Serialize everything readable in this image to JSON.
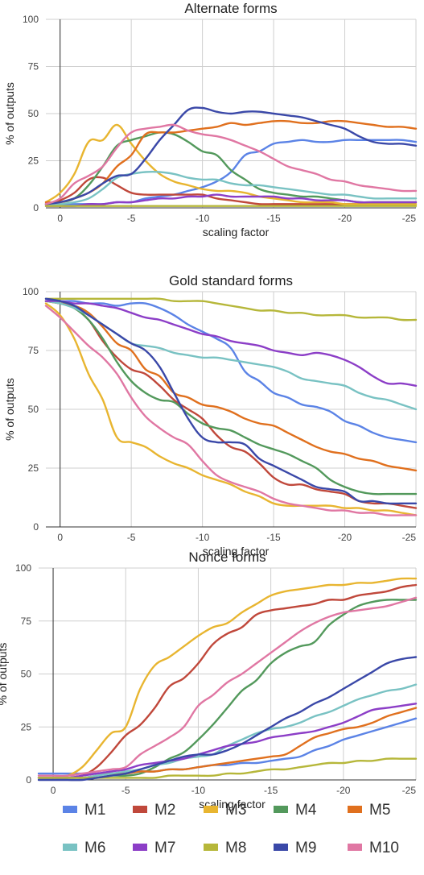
{
  "series_meta": [
    {
      "name": "M1",
      "color": "#5b83e6"
    },
    {
      "name": "M2",
      "color": "#c0483b"
    },
    {
      "name": "M3",
      "color": "#e8b530"
    },
    {
      "name": "M4",
      "color": "#53995c"
    },
    {
      "name": "M5",
      "color": "#e0701e"
    },
    {
      "name": "M6",
      "color": "#79c2c3"
    },
    {
      "name": "M7",
      "color": "#8c3ec7"
    },
    {
      "name": "M8",
      "color": "#b6b73a"
    },
    {
      "name": "M9",
      "color": "#3a48a8"
    },
    {
      "name": "M10",
      "color": "#e077a3"
    }
  ],
  "chart_data": [
    {
      "type": "line",
      "title": "Alternate forms",
      "xlabel": "scaling factor",
      "ylabel": "% of outputs",
      "xlim": [
        1,
        -25
      ],
      "ylim": [
        0,
        100
      ],
      "xticks": [
        0,
        -5,
        -10,
        -15,
        -20,
        -25
      ],
      "yticks": [
        0,
        25,
        50,
        75,
        100
      ],
      "x": [
        1,
        0,
        -1,
        -2,
        -3,
        -4,
        -5,
        -6,
        -7,
        -8,
        -9,
        -10,
        -11,
        -12,
        -13,
        -14,
        -15,
        -16,
        -17,
        -18,
        -19,
        -20,
        -21,
        -22,
        -23,
        -24,
        -25
      ],
      "series": [
        {
          "name": "M1",
          "values": [
            2,
            2,
            2,
            2,
            2,
            3,
            3,
            5,
            6,
            7,
            9,
            11,
            14,
            19,
            28,
            30,
            34,
            35,
            36,
            35,
            35,
            36,
            36,
            36,
            36,
            36,
            35
          ]
        },
        {
          "name": "M2",
          "values": [
            2,
            4,
            8,
            15,
            16,
            12,
            8,
            7,
            7,
            7,
            7,
            7,
            5,
            4,
            3,
            2,
            2,
            2,
            2,
            2,
            2,
            2,
            2,
            2,
            2,
            2,
            2
          ]
        },
        {
          "name": "M3",
          "values": [
            3,
            8,
            18,
            35,
            36,
            44,
            34,
            25,
            18,
            14,
            12,
            10,
            9,
            9,
            8,
            6,
            5,
            4,
            3,
            3,
            3,
            2,
            2,
            2,
            2,
            2,
            2
          ]
        },
        {
          "name": "M4",
          "values": [
            2,
            3,
            5,
            12,
            22,
            33,
            36,
            38,
            40,
            39,
            35,
            30,
            28,
            20,
            15,
            10,
            8,
            7,
            6,
            6,
            5,
            4,
            3,
            3,
            3,
            3,
            3
          ]
        },
        {
          "name": "M5",
          "values": [
            3,
            3,
            5,
            8,
            13,
            22,
            28,
            39,
            40,
            40,
            41,
            42,
            43,
            45,
            44,
            45,
            46,
            46,
            45,
            45,
            46,
            46,
            45,
            44,
            43,
            43,
            42
          ]
        },
        {
          "name": "M6",
          "values": [
            1,
            2,
            3,
            5,
            10,
            16,
            18,
            19,
            19,
            18,
            16,
            15,
            15,
            13,
            12,
            12,
            11,
            10,
            9,
            8,
            7,
            7,
            6,
            5,
            5,
            5,
            5
          ]
        },
        {
          "name": "M7",
          "values": [
            1,
            1,
            1,
            2,
            2,
            3,
            3,
            4,
            5,
            5,
            6,
            6,
            7,
            6,
            6,
            6,
            6,
            5,
            5,
            4,
            4,
            4,
            3,
            3,
            3,
            3,
            3
          ]
        },
        {
          "name": "M8",
          "values": [
            1,
            1,
            1,
            1,
            1,
            1,
            1,
            1,
            1,
            1,
            1,
            1,
            1,
            1,
            1,
            1,
            1,
            1,
            1,
            1,
            1,
            1,
            1,
            1,
            1,
            1,
            1
          ]
        },
        {
          "name": "M9",
          "values": [
            2,
            3,
            5,
            8,
            13,
            17,
            18,
            26,
            36,
            44,
            52,
            53,
            51,
            50,
            51,
            51,
            50,
            49,
            48,
            46,
            44,
            42,
            38,
            35,
            34,
            34,
            33
          ]
        },
        {
          "name": "M10",
          "values": [
            2,
            5,
            13,
            17,
            22,
            32,
            40,
            42,
            43,
            44,
            41,
            39,
            38,
            36,
            33,
            30,
            26,
            22,
            20,
            18,
            15,
            14,
            12,
            11,
            10,
            9,
            9
          ]
        }
      ]
    },
    {
      "type": "line",
      "title": "Gold standard forms",
      "xlabel": "scaling factor",
      "ylabel": "% of outputs",
      "xlim": [
        1,
        -25
      ],
      "ylim": [
        0,
        100
      ],
      "xticks": [
        0,
        -5,
        -10,
        -15,
        -20,
        -25
      ],
      "yticks": [
        0,
        25,
        50,
        75,
        100
      ],
      "x": [
        1,
        0,
        -1,
        -2,
        -3,
        -4,
        -5,
        -6,
        -7,
        -8,
        -9,
        -10,
        -11,
        -12,
        -13,
        -14,
        -15,
        -16,
        -17,
        -18,
        -19,
        -20,
        -21,
        -22,
        -23,
        -24,
        -25
      ],
      "series": [
        {
          "name": "M1",
          "values": [
            97,
            96,
            96,
            95,
            95,
            94,
            95,
            95,
            93,
            90,
            86,
            83,
            80,
            76,
            66,
            62,
            57,
            55,
            52,
            51,
            49,
            45,
            43,
            40,
            38,
            37,
            36
          ]
        },
        {
          "name": "M2",
          "values": [
            96,
            95,
            93,
            88,
            79,
            72,
            67,
            65,
            60,
            54,
            50,
            46,
            39,
            34,
            32,
            27,
            21,
            18,
            18,
            16,
            15,
            14,
            11,
            10,
            10,
            9,
            8
          ]
        },
        {
          "name": "M3",
          "values": [
            95,
            90,
            80,
            65,
            54,
            38,
            36,
            34,
            30,
            27,
            25,
            22,
            20,
            18,
            15,
            13,
            10,
            9,
            9,
            9,
            9,
            8,
            8,
            7,
            7,
            6,
            5
          ]
        },
        {
          "name": "M4",
          "values": [
            96,
            95,
            93,
            88,
            80,
            70,
            62,
            57,
            54,
            53,
            48,
            44,
            42,
            41,
            38,
            35,
            33,
            31,
            28,
            25,
            20,
            17,
            15,
            14,
            14,
            14,
            14
          ]
        },
        {
          "name": "M5",
          "values": [
            96,
            95,
            94,
            91,
            85,
            78,
            75,
            67,
            64,
            57,
            55,
            52,
            51,
            49,
            46,
            44,
            43,
            40,
            37,
            34,
            32,
            31,
            29,
            28,
            26,
            25,
            24
          ]
        },
        {
          "name": "M6",
          "values": [
            96,
            95,
            93,
            90,
            86,
            82,
            78,
            77,
            76,
            74,
            73,
            72,
            72,
            71,
            70,
            69,
            68,
            66,
            63,
            62,
            61,
            60,
            57,
            55,
            54,
            52,
            50
          ]
        },
        {
          "name": "M7",
          "values": [
            96,
            96,
            95,
            95,
            94,
            93,
            91,
            89,
            88,
            86,
            84,
            82,
            81,
            79,
            78,
            77,
            75,
            74,
            73,
            74,
            73,
            71,
            68,
            64,
            61,
            61,
            60
          ]
        },
        {
          "name": "M8",
          "values": [
            97,
            97,
            97,
            97,
            97,
            97,
            97,
            97,
            97,
            96,
            96,
            96,
            95,
            94,
            93,
            92,
            92,
            91,
            91,
            90,
            90,
            90,
            89,
            89,
            89,
            88,
            88
          ]
        },
        {
          "name": "M9",
          "values": [
            97,
            96,
            94,
            90,
            86,
            82,
            78,
            75,
            68,
            57,
            46,
            38,
            36,
            36,
            35,
            29,
            26,
            23,
            20,
            17,
            16,
            15,
            11,
            11,
            10,
            10,
            10
          ]
        },
        {
          "name": "M10",
          "values": [
            94,
            89,
            83,
            77,
            72,
            65,
            55,
            47,
            42,
            38,
            35,
            28,
            22,
            19,
            17,
            15,
            12,
            10,
            9,
            8,
            7,
            7,
            6,
            6,
            5,
            5,
            5
          ]
        }
      ]
    },
    {
      "type": "line",
      "title": "Nonce forms",
      "xlabel": "scaling factor",
      "ylabel": "% of outputs",
      "xlim": [
        1,
        -25
      ],
      "ylim": [
        0,
        100
      ],
      "xticks": [
        0,
        -5,
        -10,
        -15,
        -20,
        -25
      ],
      "yticks": [
        0,
        25,
        50,
        75,
        100
      ],
      "x": [
        1,
        0,
        -1,
        -2,
        -3,
        -4,
        -5,
        -6,
        -7,
        -8,
        -9,
        -10,
        -11,
        -12,
        -13,
        -14,
        -15,
        -16,
        -17,
        -18,
        -19,
        -20,
        -21,
        -22,
        -23,
        -24,
        -25
      ],
      "series": [
        {
          "name": "M1",
          "values": [
            3,
            3,
            3,
            3,
            3,
            3,
            3,
            4,
            4,
            5,
            5,
            6,
            7,
            7,
            8,
            8,
            9,
            10,
            11,
            14,
            16,
            19,
            21,
            23,
            25,
            27,
            29
          ]
        },
        {
          "name": "M2",
          "values": [
            1,
            1,
            1,
            2,
            6,
            13,
            21,
            26,
            34,
            44,
            48,
            55,
            64,
            69,
            72,
            78,
            80,
            81,
            82,
            83,
            85,
            85,
            87,
            88,
            89,
            91,
            92
          ]
        },
        {
          "name": "M3",
          "values": [
            1,
            1,
            2,
            6,
            14,
            22,
            25,
            43,
            54,
            58,
            63,
            68,
            72,
            74,
            79,
            83,
            87,
            89,
            90,
            91,
            92,
            92,
            93,
            93,
            94,
            95,
            95
          ]
        },
        {
          "name": "M4",
          "values": [
            1,
            1,
            1,
            1,
            1,
            2,
            2,
            3,
            6,
            10,
            13,
            19,
            26,
            34,
            42,
            47,
            55,
            60,
            63,
            65,
            73,
            78,
            82,
            84,
            85,
            85,
            85
          ]
        },
        {
          "name": "M5",
          "values": [
            1,
            1,
            1,
            1,
            2,
            3,
            3,
            4,
            4,
            5,
            5,
            6,
            7,
            8,
            9,
            10,
            11,
            12,
            16,
            20,
            22,
            24,
            25,
            27,
            30,
            32,
            34
          ]
        },
        {
          "name": "M6",
          "values": [
            1,
            1,
            1,
            1,
            2,
            3,
            4,
            5,
            7,
            8,
            10,
            11,
            12,
            16,
            19,
            22,
            24,
            25,
            27,
            30,
            32,
            35,
            38,
            40,
            42,
            43,
            45
          ]
        },
        {
          "name": "M7",
          "values": [
            1,
            1,
            1,
            2,
            3,
            4,
            5,
            7,
            8,
            9,
            10,
            12,
            14,
            16,
            17,
            18,
            20,
            21,
            22,
            23,
            25,
            27,
            30,
            33,
            34,
            35,
            36
          ]
        },
        {
          "name": "M8",
          "values": [
            1,
            1,
            1,
            1,
            1,
            1,
            1,
            1,
            1,
            2,
            2,
            2,
            2,
            3,
            3,
            4,
            5,
            5,
            6,
            7,
            8,
            8,
            9,
            9,
            10,
            10,
            10
          ]
        },
        {
          "name": "M9",
          "values": [
            0,
            0,
            0,
            0,
            1,
            2,
            3,
            5,
            7,
            9,
            11,
            12,
            12,
            14,
            17,
            21,
            25,
            29,
            32,
            36,
            39,
            43,
            47,
            51,
            55,
            57,
            58
          ]
        },
        {
          "name": "M10",
          "values": [
            2,
            2,
            2,
            3,
            4,
            5,
            6,
            12,
            16,
            20,
            25,
            35,
            40,
            46,
            50,
            55,
            60,
            65,
            70,
            74,
            77,
            79,
            80,
            81,
            82,
            84,
            86
          ]
        }
      ]
    }
  ]
}
